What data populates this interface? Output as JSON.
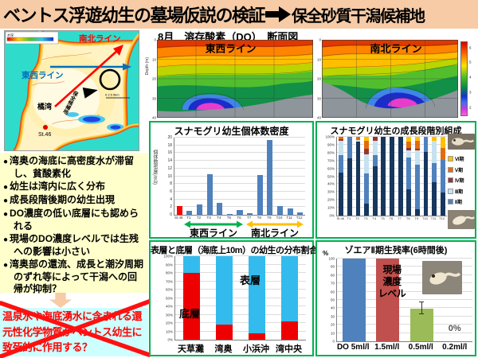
{
  "colors": {
    "title_bg": "#F6CBA6",
    "bullets_bg": "#FFFFCC",
    "rejected_bg": "#CCFFFF",
    "rejected_text": "#FF0000",
    "box_border": "#00B050",
    "bar_blue": "#4F81BD",
    "highlight_red": "#FF0000",
    "line_ns_red": "#FF0000",
    "line_ew_blue": "#0070C0"
  },
  "header": {
    "title_left": "ベントス浮遊幼生の墓場仮説の検証",
    "title_right": "保全砂質干潟候補地"
  },
  "map": {
    "depth_legend_label": "水深",
    "line_ns_label": "南北ライン",
    "line_ew_label": "東西ライン",
    "bay_label": "橘湾",
    "station_label": "St.46",
    "candidate_site_label": "保全候補地",
    "scale_label": "0 2.5 5km"
  },
  "bullets": {
    "items": [
      "湾奥の海底に高密度水が滞留し、貧酸素化",
      "幼生は湾内に広く分布",
      "成長段階後期の幼生出現",
      "DO濃度の低い底層にも認められる",
      "現場のDO濃度レベルでは生残への影響は小さい",
      "湾奥部の還流、成長と潮汐周期のずれ等によって干潟への回帰が抑制？"
    ]
  },
  "rejected_hypothesis": {
    "text": "温泉水や海底湧水に含まれる還元性化学物質がベントス幼生に致死的に作用する？"
  },
  "do_section": {
    "title": "8月　溶存酸素（DO）　断面図",
    "left_panel_label": "東西ライン",
    "right_panel_label": "南北ライン",
    "y_axis_label": "Depth (m)",
    "depth_ticks": [
      "0",
      "10",
      "20",
      "30",
      "40"
    ],
    "colorbar_ticks": [
      "6",
      "5",
      "4",
      "3",
      "2"
    ]
  },
  "chart_data": [
    {
      "type": "bar",
      "title": "スナモグリ幼生個体数密度",
      "ylabel": "個体数密度(/m3)",
      "ylim": [
        0,
        20
      ],
      "ytick_step": 2,
      "categories": [
        "St.46",
        "T1",
        "T2",
        "T3",
        "T4",
        "T5",
        "T6",
        "T7",
        "T8",
        "T9",
        "T10",
        "T11",
        "T12"
      ],
      "values": [
        2.3,
        1.0,
        2.6,
        10.5,
        3.0,
        0.2,
        1.2,
        0.5,
        10.4,
        19.4,
        2.3,
        1.7,
        0.6
      ],
      "bar_color": "#4F81BD",
      "highlight_color": "#FF0000",
      "highlight_category": "St.46",
      "group_arrows": [
        {
          "label": "東西ライン",
          "from": "T1",
          "to": "T6",
          "color": "#00B050"
        },
        {
          "label": "南北ライン",
          "from": "T7",
          "to": "T12",
          "color": "#FFC000"
        }
      ]
    },
    {
      "type": "stacked-bar-100",
      "title": "スナモグリ幼生の成長段階別組成",
      "ylim_percent": [
        0,
        100
      ],
      "categories": [
        "St.46",
        "T1",
        "T2",
        "T3",
        "T4",
        "T5",
        "T6",
        "T7",
        "T8",
        "T9",
        "T10",
        "T11",
        "T12"
      ],
      "series": [
        {
          "name": "Ⅰ期",
          "color": "#17375E",
          "values": [
            55,
            73,
            94,
            15,
            63,
            100,
            100,
            100,
            33,
            8,
            81,
            42,
            29
          ]
        },
        {
          "name": "Ⅱ期",
          "color": "#4F81BD",
          "values": [
            22,
            27,
            0,
            39,
            14,
            0,
            0,
            0,
            41,
            57,
            19,
            25,
            42
          ]
        },
        {
          "name": "Ⅲ期",
          "color": "#C6E2F0",
          "values": [
            18,
            0,
            2,
            24,
            18,
            0,
            0,
            0,
            9,
            18,
            0,
            28,
            0
          ]
        },
        {
          "name": "Ⅳ期",
          "color": "#963634",
          "values": [
            2,
            0,
            0,
            7,
            5,
            0,
            0,
            0,
            3,
            2,
            0,
            0,
            0
          ]
        },
        {
          "name": "Ⅴ期",
          "color": "#E36C0A",
          "values": [
            3,
            0,
            4,
            10,
            0,
            0,
            0,
            0,
            8,
            10,
            0,
            0,
            15
          ]
        },
        {
          "name": "Ⅵ期",
          "color": "#FFC000",
          "values": [
            0,
            0,
            0,
            5,
            0,
            0,
            0,
            0,
            6,
            5,
            0,
            5,
            14
          ]
        }
      ],
      "legend_order_top_to_bottom": [
        "Ⅵ期",
        "Ⅴ期",
        "Ⅳ期",
        "Ⅲ期",
        "Ⅱ期",
        "Ⅰ期"
      ]
    },
    {
      "type": "stacked-bar-100",
      "title": "表層と底層（海底上10m）の幼生の分布割合",
      "ylim_percent": [
        0,
        100
      ],
      "categories": [
        "天草灘",
        "湾奥",
        "小浜沖",
        "湾中央"
      ],
      "series": [
        {
          "name": "底層",
          "color": "#EE0000",
          "values": [
            80,
            18,
            8,
            22
          ]
        },
        {
          "name": "表層",
          "color": "#33BBEE",
          "values": [
            20,
            82,
            92,
            78
          ]
        }
      ],
      "inline_labels": {
        "surface": "表層",
        "bottom": "底層"
      }
    },
    {
      "type": "bar",
      "title": "ゾエアⅡ期生残率(6時間後)",
      "ylabel": "%",
      "ylim": [
        0,
        100
      ],
      "ytick_step": 10,
      "categories": [
        "DO 5ml/l",
        "1.5ml/l",
        "0.5ml/l",
        "0.2ml/l"
      ],
      "values": [
        100,
        100,
        39,
        0
      ],
      "bar_colors": [
        "#4F81BD",
        "#C0504D",
        "#9BBB59",
        null
      ],
      "error_bar": {
        "category": "0.5ml/l",
        "index": 2,
        "low": 33,
        "high": 47
      },
      "annotations": {
        "field_level": "現場\n濃度\nレベル",
        "zero_label": "0%"
      }
    }
  ]
}
